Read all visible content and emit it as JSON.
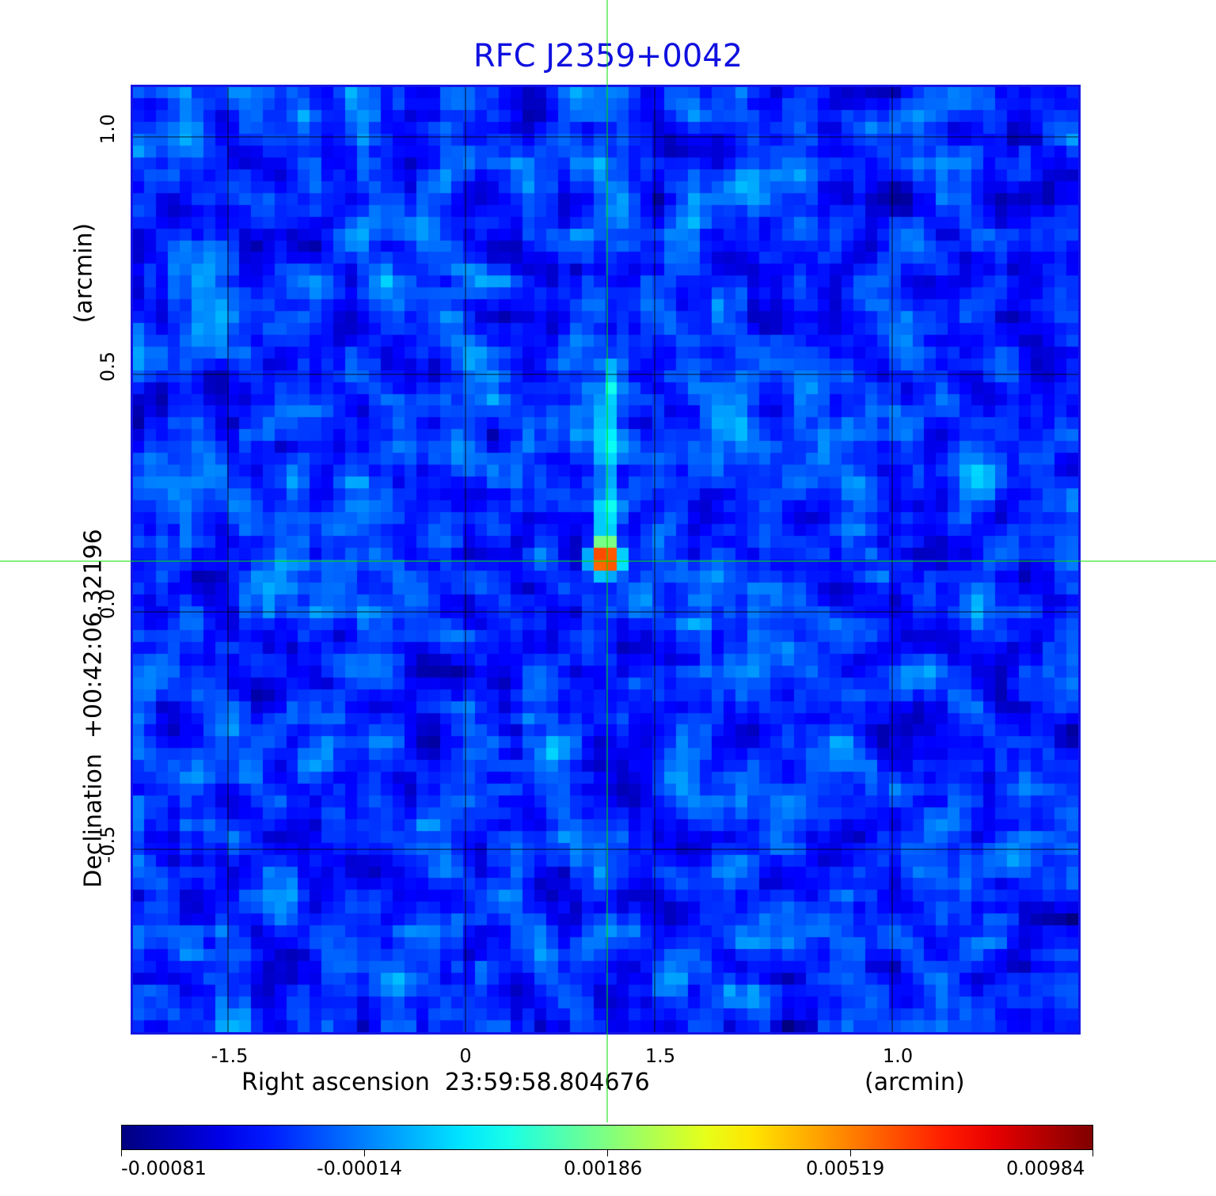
{
  "title": "RFC J2359+0042",
  "x_axis": {
    "label": "Right ascension  23:59:58.804676",
    "unit": "(arcmin)",
    "ticks": [
      "-1.5",
      "0",
      "1.5",
      "1.0"
    ]
  },
  "y_axis": {
    "label": "Declination  +00:42:06.32196",
    "unit": "(arcmin)",
    "ticks": [
      "1.0",
      "0.5",
      "0.0",
      "-0.5"
    ]
  },
  "colorbar": {
    "ticks": [
      "-0.00081",
      "-0.00014",
      "0.00186",
      "0.00519",
      "0.00984"
    ],
    "colormap": "jet",
    "range": [
      -0.00081,
      0.00984
    ]
  },
  "colors": {
    "title": "#1010e0",
    "frame": "#1414e6",
    "crosshair": "#00e000",
    "grid": "#000000"
  }
}
